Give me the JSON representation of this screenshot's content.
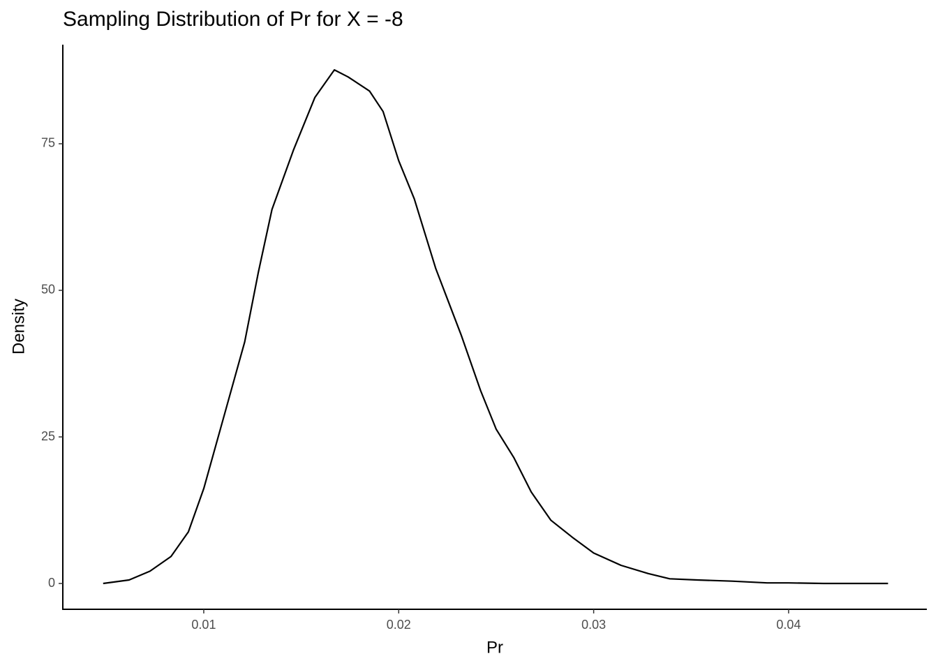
{
  "chart_data": {
    "type": "line",
    "title": "Sampling Distribution of Pr for X = -8",
    "x_label": "Pr",
    "y_label": "Density",
    "x": [
      0.00484,
      0.00617,
      0.00724,
      0.00832,
      0.00921,
      0.01,
      0.011,
      0.0121,
      0.0128,
      0.0135,
      0.0146,
      0.0157,
      0.0167,
      0.0174,
      0.0185,
      0.0192,
      0.02,
      0.0208,
      0.0219,
      0.0232,
      0.0242,
      0.025,
      0.0259,
      0.0268,
      0.0278,
      0.0289,
      0.03,
      0.0314,
      0.0328,
      0.0339,
      0.0353,
      0.0371,
      0.0389,
      0.04,
      0.0418,
      0.0451
    ],
    "series": [
      {
        "color": "#000000",
        "values": [
          0,
          0.6,
          2.1,
          4.6,
          8.8,
          16.2,
          28.1,
          41.2,
          53.1,
          63.8,
          73.9,
          82.9,
          87.6,
          86.4,
          84.0,
          80.5,
          72.1,
          65.6,
          53.7,
          42.4,
          32.9,
          26.3,
          21.5,
          15.6,
          10.8,
          7.9,
          5.2,
          3.1,
          1.7,
          0.8,
          0.6,
          0.4,
          0.1,
          0.1,
          0,
          0
        ]
      }
    ],
    "xlim": [
      0.00277,
      0.04709
    ],
    "ylim": [
      -4.4,
      91.9
    ],
    "xticks": [
      0.01,
      0.02,
      0.03,
      0.04
    ],
    "yticks": [
      0,
      25,
      50,
      75
    ],
    "grid": false
  }
}
